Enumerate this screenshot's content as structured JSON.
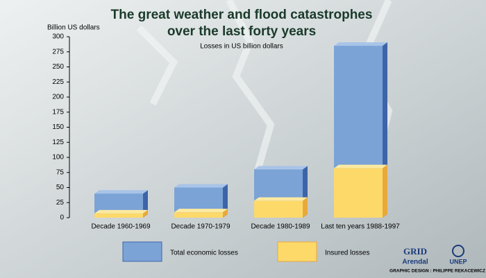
{
  "chart_data": {
    "type": "bar",
    "title": "The great weather and flood catastrophes",
    "title_line2": "over the last forty years",
    "subtitle": "Losses in US billion dollars",
    "y_axis_label": "Billion US dollars",
    "categories": [
      "Decade 1960-1969",
      "Decade 1970-1979",
      "Decade 1980-1989",
      "Last ten years 1988-1997"
    ],
    "series": [
      {
        "name": "Total economic losses",
        "color": "#7ba3d6",
        "values": [
          40,
          50,
          80,
          285
        ]
      },
      {
        "name": "Insured losses",
        "color": "#fdd96a",
        "values": [
          7,
          9,
          28,
          82
        ]
      }
    ],
    "ylim": [
      0,
      300
    ],
    "yticks": [
      0,
      25,
      50,
      75,
      100,
      125,
      150,
      175,
      200,
      225,
      250,
      275,
      300
    ],
    "credits": {
      "org1": "GRID",
      "org1_sub": "Arendal",
      "org2": "UNEP",
      "designer": "GRAPHIC DESIGN : PHILIPPE REKACEWICZ"
    }
  }
}
